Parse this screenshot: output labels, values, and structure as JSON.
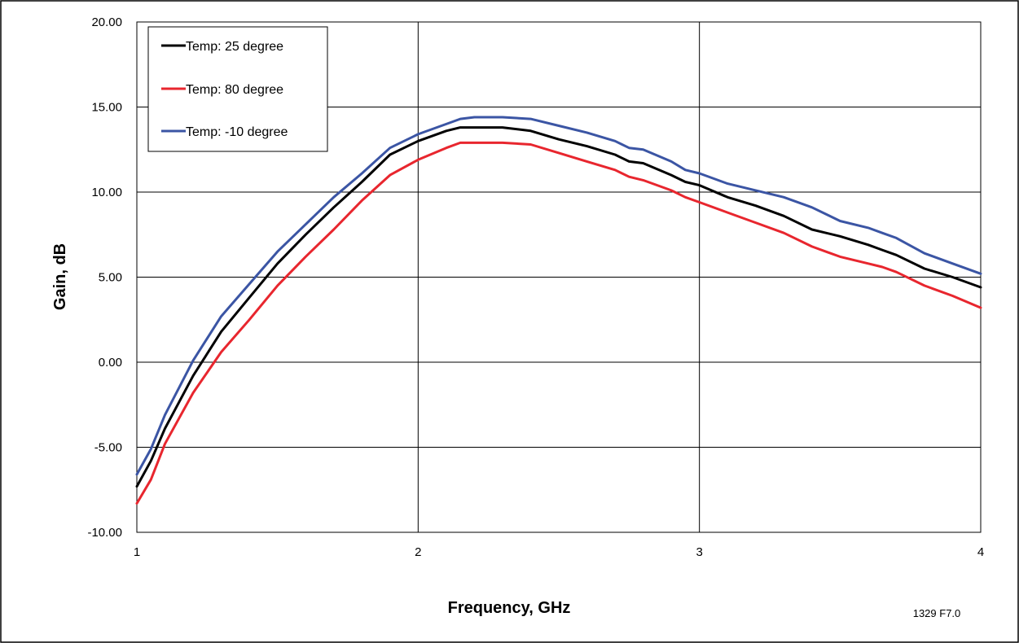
{
  "chart_data": {
    "type": "line",
    "title": "",
    "xlabel": "Frequency, GHz",
    "ylabel": "Gain, dB",
    "xlim": [
      1,
      4
    ],
    "ylim": [
      -10,
      20
    ],
    "x_ticks": [
      "1",
      "2",
      "3",
      "4"
    ],
    "y_ticks": [
      "-10.00",
      "-5.00",
      "0.00",
      "5.00",
      "10.00",
      "15.00",
      "20.00"
    ],
    "grid": true,
    "legend_position": "top-left",
    "figure_id": "1329 F7.0",
    "series": [
      {
        "name": "Temp: 25 degree",
        "color": "#000000",
        "x": [
          1.0,
          1.05,
          1.1,
          1.2,
          1.3,
          1.4,
          1.5,
          1.6,
          1.7,
          1.8,
          1.9,
          2.0,
          2.1,
          2.15,
          2.2,
          2.3,
          2.4,
          2.5,
          2.6,
          2.7,
          2.75,
          2.8,
          2.9,
          2.95,
          3.0,
          3.1,
          3.2,
          3.3,
          3.4,
          3.5,
          3.6,
          3.65,
          3.7,
          3.8,
          3.9,
          4.0
        ],
        "y": [
          -7.3,
          -5.8,
          -3.9,
          -0.8,
          1.8,
          3.8,
          5.8,
          7.5,
          9.1,
          10.6,
          12.2,
          13.0,
          13.6,
          13.8,
          13.8,
          13.8,
          13.6,
          13.1,
          12.7,
          12.2,
          11.8,
          11.7,
          11.0,
          10.6,
          10.4,
          9.7,
          9.2,
          8.6,
          7.8,
          7.4,
          6.9,
          6.6,
          6.3,
          5.5,
          5.0,
          4.4
        ]
      },
      {
        "name": "Temp: 80 degree",
        "color": "#e8262e",
        "x": [
          1.0,
          1.05,
          1.1,
          1.2,
          1.3,
          1.4,
          1.5,
          1.6,
          1.7,
          1.8,
          1.9,
          2.0,
          2.1,
          2.15,
          2.2,
          2.3,
          2.4,
          2.5,
          2.6,
          2.7,
          2.75,
          2.8,
          2.9,
          2.95,
          3.0,
          3.1,
          3.2,
          3.3,
          3.4,
          3.5,
          3.6,
          3.65,
          3.7,
          3.8,
          3.9,
          4.0
        ],
        "y": [
          -8.3,
          -6.9,
          -4.8,
          -1.8,
          0.6,
          2.5,
          4.5,
          6.2,
          7.8,
          9.5,
          11.0,
          11.9,
          12.6,
          12.9,
          12.9,
          12.9,
          12.8,
          12.3,
          11.8,
          11.3,
          10.9,
          10.7,
          10.1,
          9.7,
          9.4,
          8.8,
          8.2,
          7.6,
          6.8,
          6.2,
          5.8,
          5.6,
          5.3,
          4.5,
          3.9,
          3.2
        ]
      },
      {
        "name": "Temp: -10 degree",
        "color": "#3b55a4",
        "x": [
          1.0,
          1.05,
          1.1,
          1.2,
          1.3,
          1.4,
          1.5,
          1.6,
          1.7,
          1.8,
          1.9,
          2.0,
          2.1,
          2.15,
          2.2,
          2.3,
          2.4,
          2.5,
          2.6,
          2.7,
          2.75,
          2.8,
          2.9,
          2.95,
          3.0,
          3.1,
          3.2,
          3.3,
          3.4,
          3.5,
          3.6,
          3.65,
          3.7,
          3.8,
          3.9,
          4.0
        ],
        "y": [
          -6.6,
          -5.1,
          -3.1,
          0.1,
          2.7,
          4.6,
          6.5,
          8.1,
          9.7,
          11.1,
          12.6,
          13.4,
          14.0,
          14.3,
          14.4,
          14.4,
          14.3,
          13.9,
          13.5,
          13.0,
          12.6,
          12.5,
          11.8,
          11.3,
          11.1,
          10.5,
          10.1,
          9.7,
          9.1,
          8.3,
          7.9,
          7.6,
          7.3,
          6.4,
          5.8,
          5.2
        ]
      }
    ]
  }
}
